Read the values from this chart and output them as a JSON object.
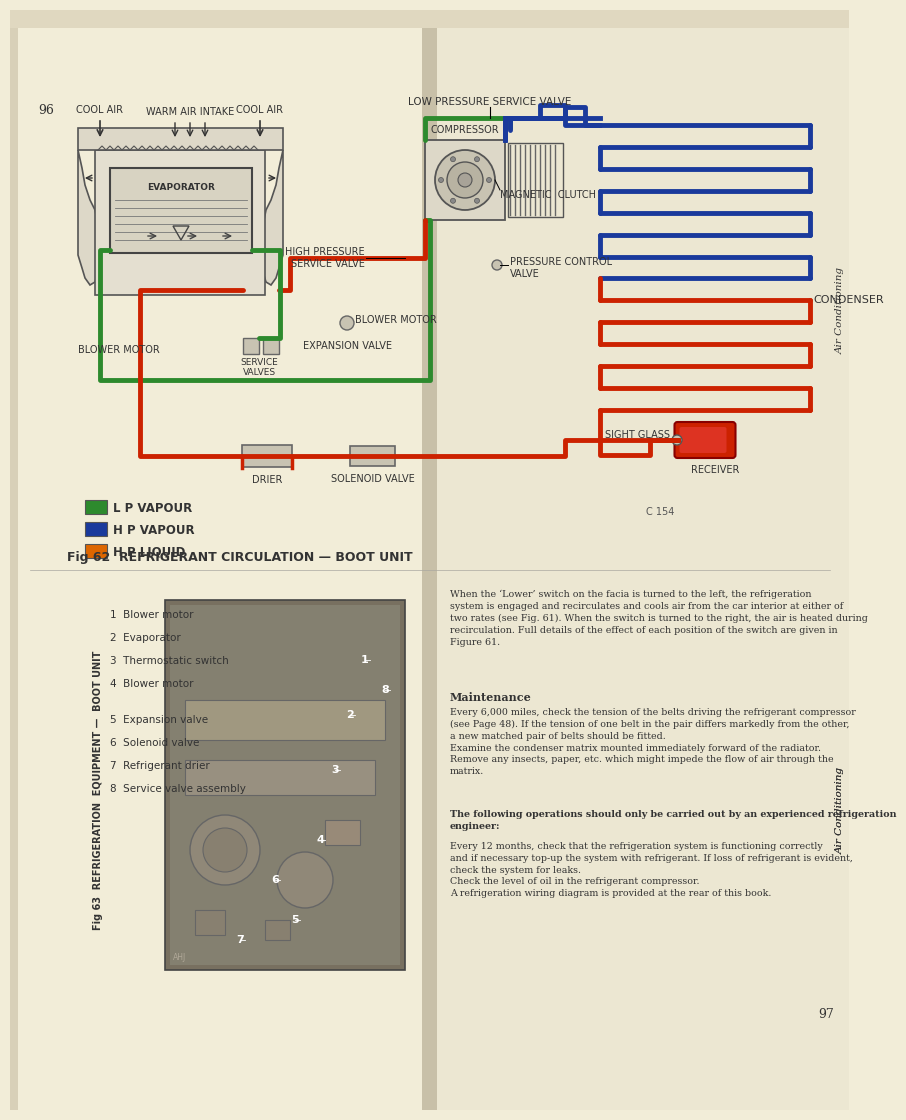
{
  "page_bg_left": "#f2edd8",
  "page_bg_right": "#ece7d2",
  "spine_color": "#c8c0a8",
  "green": "#2d8a2d",
  "blue": "#1a3a9c",
  "red": "#cc2200",
  "orange": "#dd6600",
  "dark": "#333333",
  "mid": "#888888",
  "light_fill": "#ddd8c8",
  "lw": 3.5,
  "page_left": "96",
  "page_right": "97",
  "side_text_top": "Air Conditioning",
  "side_text_bot": "Air Conditioning",
  "labels": {
    "low_pressure_sv": "LOW PRESSURE SERVICE VALVE",
    "cool_air_left": "COOL AIR",
    "cool_air_right": "COOL AIR",
    "warm_air_intake": "WARM AIR INTAKE",
    "evaporator": "EVAPORATOR",
    "compressor": "COMPRESSOR",
    "magnetic_clutch": "MAGNETIC  CLUTCH",
    "high_pressure_sv": "HIGH PRESSURE\nSERVICE VALVE",
    "blower_motor_r": "BLOWER MOTOR",
    "service_valves": "SERVICE\nVALVES",
    "expansion_valve": "EXPANSION VALVE",
    "blower_motor_l": "BLOWER MOTOR",
    "drier": "DRIER",
    "solenoid_valve": "SOLENOID VALVE",
    "pressure_control": "PRESSURE CONTROL\nVALVE",
    "sight_glass": "SIGHT GLASS",
    "receiver": "RECEIVER",
    "condenser": "CONDENSER",
    "c154": "C 154"
  },
  "legend": [
    {
      "label": "L P VAPOUR",
      "color": "#2d8a2d"
    },
    {
      "label": "H P VAPOUR",
      "color": "#1a3a9c"
    },
    {
      "label": "H P LIQUID",
      "color": "#dd6600"
    }
  ],
  "fig62_caption": "Fig 62  REFRIGERANT CIRCULATION — BOOT UNIT",
  "fig63_caption": "Fig 63  REFRIGERATION  EQUIPMENT —  BOOT UNIT",
  "fig63_labels_left": [
    "1  Blower motor",
    "2  Evaporator",
    "3  Thermostatic switch",
    "4  Blower motor",
    "5  Expansion valve",
    "6  Solenoid valve",
    "7  Refrigerant drier",
    "8  Service valve assembly"
  ],
  "right_text_top": "When the ‘Lower’ switch on the facia is turned to the left, the refrigeration\nsystem is engaged and recirculates and cools air from the car interior at either of\ntwo rates (see Fig. 61). When the switch is turned to the right, the air is heated during\nrecirculation. Full details of the effect of each position of the switch are given in\nFigure 61.",
  "maintenance_head": "Maintenance",
  "maintenance_body": "Every 6,000 miles, check the tension of the belts driving the refrigerant compressor\n(see Page 48). If the tension of one belt in the pair differs markedly from the other,\na new matched pair of belts should be fitted.\nExamine the condenser matrix mounted immediately forward of the radiator.\nRemove any insects, paper, etc. which might impede the flow of air through the\nmatrix.",
  "bold_warning": "The following operations should only be carried out by an experienced refrigeration\nengineer:",
  "body2": "Every 12 months, check that the refrigeration system is functioning correctly\nand if necessary top-up the system with refrigerant. If loss of refrigerant is evident,\ncheck the system for leaks.\nCheck the level of oil in the refrigerant compressor.\nA refrigeration wiring diagram is provided at the rear of this book."
}
